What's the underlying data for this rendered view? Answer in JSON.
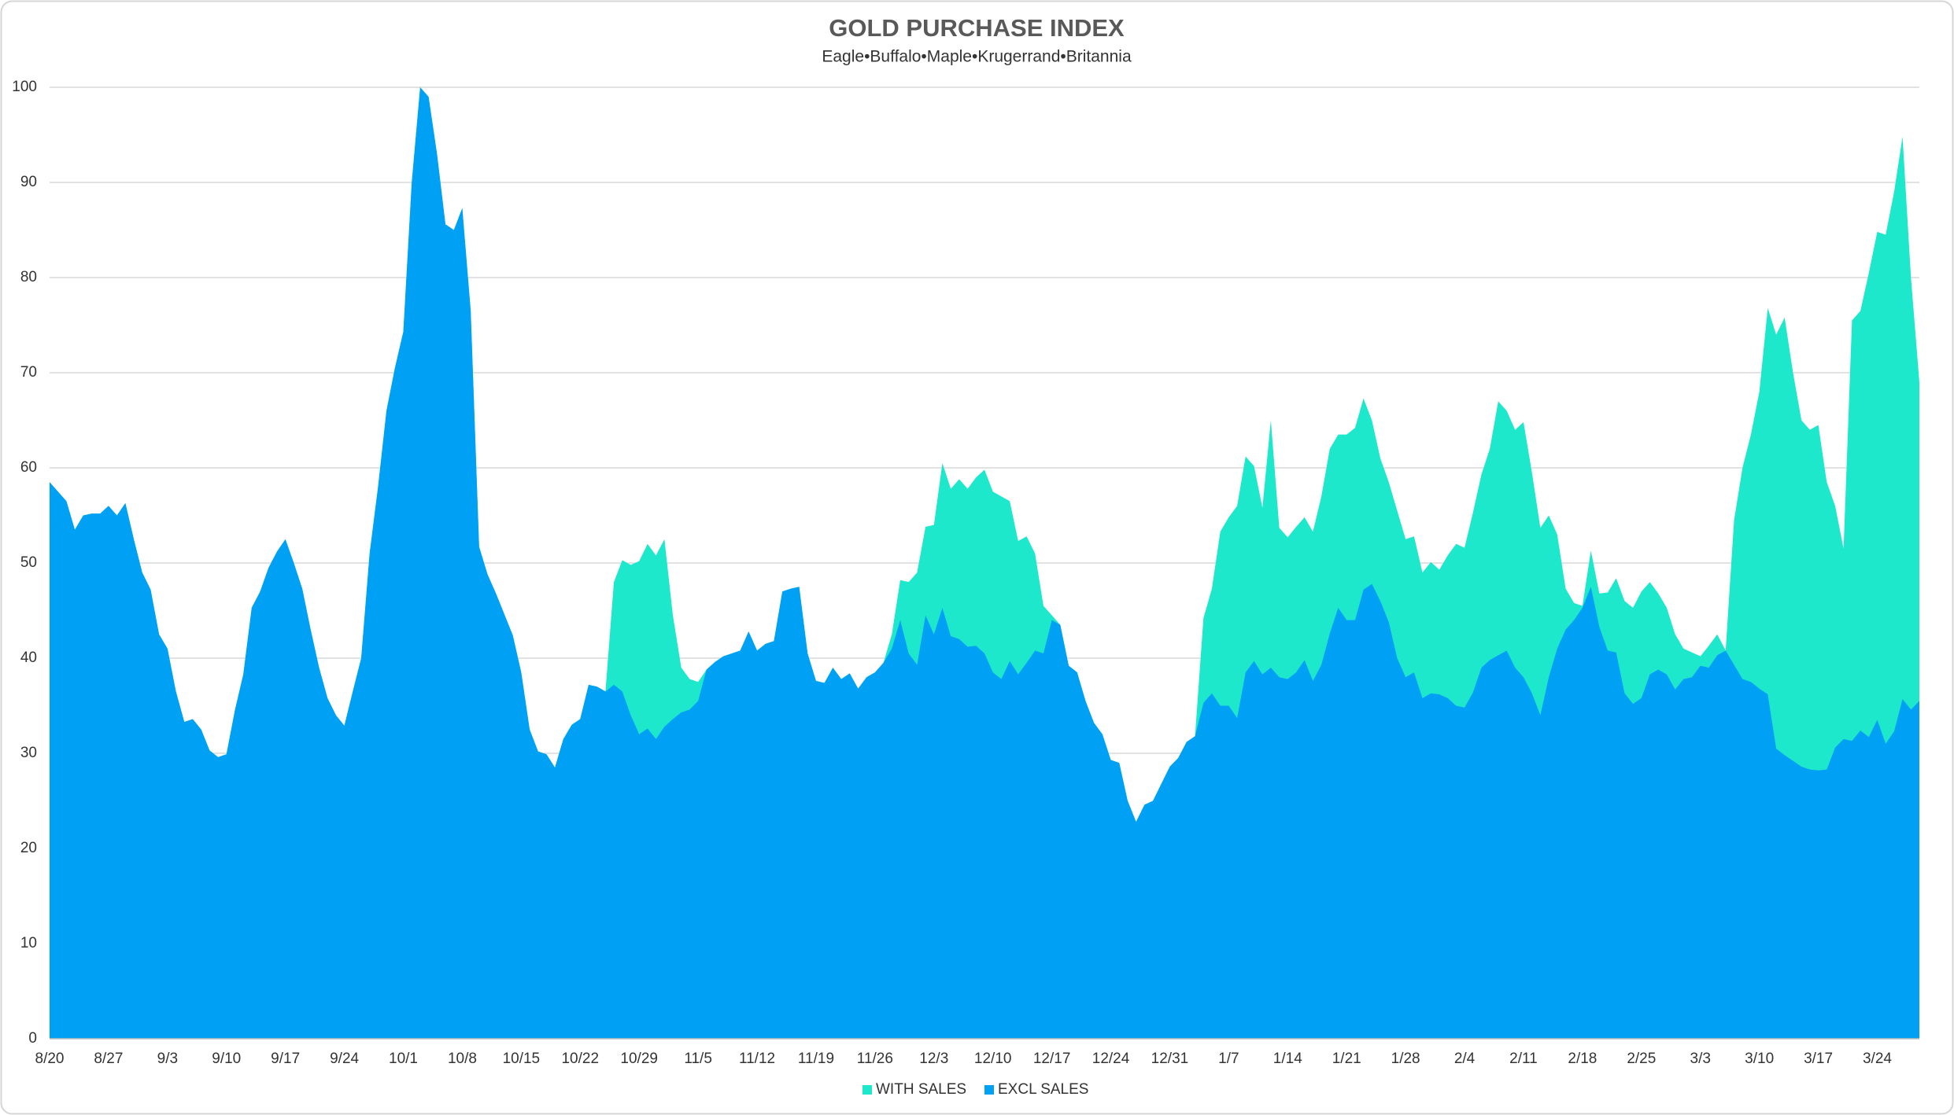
{
  "chart_data": {
    "type": "area",
    "title": "GOLD PURCHASE  INDEX",
    "subtitle": "Eagle•Buffalo•Maple•Krugerrand•Britannia",
    "categories": [
      "8/20",
      null,
      null,
      null,
      null,
      null,
      null,
      "8/27",
      null,
      null,
      null,
      null,
      null,
      null,
      "9/3",
      null,
      null,
      null,
      null,
      null,
      null,
      "9/10",
      null,
      null,
      null,
      null,
      null,
      null,
      "9/17",
      null,
      null,
      null,
      null,
      null,
      null,
      "9/24",
      null,
      null,
      null,
      null,
      null,
      null,
      "10/1",
      null,
      null,
      null,
      null,
      null,
      null,
      "10/8",
      null,
      null,
      null,
      null,
      null,
      null,
      "10/15",
      null,
      null,
      null,
      null,
      null,
      null,
      "10/22",
      null,
      null,
      null,
      null,
      null,
      null,
      "10/29",
      null,
      null,
      null,
      null,
      null,
      null,
      "11/5",
      null,
      null,
      null,
      null,
      null,
      null,
      "11/12",
      null,
      null,
      null,
      null,
      null,
      null,
      "11/19",
      null,
      null,
      null,
      null,
      null,
      null,
      "11/26",
      null,
      null,
      null,
      null,
      null,
      null,
      "12/3",
      null,
      null,
      null,
      null,
      null,
      null,
      "12/10",
      null,
      null,
      null,
      null,
      null,
      null,
      "12/17",
      null,
      null,
      null,
      null,
      null,
      null,
      "12/24",
      null,
      null,
      null,
      null,
      null,
      null,
      "12/31",
      null,
      null,
      null,
      null,
      null,
      null,
      "1/7",
      null,
      null,
      null,
      null,
      null,
      null,
      "1/14",
      null,
      null,
      null,
      null,
      null,
      null,
      "1/21",
      null,
      null,
      null,
      null,
      null,
      null,
      "1/28",
      null,
      null,
      null,
      null,
      null,
      null,
      "2/4",
      null,
      null,
      null,
      null,
      null,
      null,
      "2/11",
      null,
      null,
      null,
      null,
      null,
      null,
      "2/18",
      null,
      null,
      null,
      null,
      null,
      null,
      "2/25",
      null,
      null,
      null,
      null,
      null,
      null,
      "3/3",
      null,
      null,
      null,
      null,
      null,
      null,
      "3/10",
      null,
      null,
      null,
      null,
      null,
      null,
      "3/17",
      null,
      null,
      null,
      null,
      null,
      null,
      "3/24",
      null,
      null,
      null,
      null,
      null
    ],
    "series": [
      {
        "name": "WITH SALES",
        "color": "#1de8cc",
        "values": [
          58.5,
          57.5,
          56.5,
          53.5,
          55,
          55.2,
          55.2,
          56,
          55,
          56.3,
          52.5,
          49,
          47.2,
          42.5,
          41,
          36.5,
          33.3,
          33.6,
          32.5,
          30.3,
          29.6,
          29.9,
          34.5,
          38.3,
          45.3,
          47,
          49.5,
          51.2,
          52.5,
          50,
          47.3,
          43,
          39,
          35.8,
          34,
          32.9,
          36.5,
          40,
          51,
          58,
          66,
          70.5,
          74.3,
          90,
          100,
          99,
          93,
          85.6,
          85,
          87.3,
          76.5,
          51.7,
          48.8,
          46.8,
          44.6,
          42.4,
          38.5,
          32.5,
          30.2,
          29.9,
          28.5,
          31.5,
          33,
          33.6,
          37.2,
          37,
          36.5,
          48,
          50.3,
          49.8,
          50.2,
          52,
          50.8,
          52.5,
          44.5,
          39,
          37.8,
          37.5,
          38.8,
          39.6,
          40.2,
          40.5,
          40.8,
          42.8,
          40.8,
          41.5,
          41.8,
          47,
          47.3,
          47.5,
          40.5,
          37.6,
          37.4,
          39,
          37.8,
          38.4,
          36.8,
          38,
          38.5,
          39.5,
          42.5,
          48.2,
          48,
          49,
          53.8,
          54,
          60.5,
          57.8,
          58.8,
          57.8,
          59,
          59.8,
          57.5,
          57,
          56.5,
          52.3,
          52.8,
          51,
          45.5,
          44.5,
          43.5,
          39.2,
          38.5,
          35.5,
          33.2,
          32,
          29.3,
          29,
          25,
          22.8,
          24.6,
          25,
          26.8,
          28.6,
          29.5,
          31.2,
          31.8,
          44.2,
          47.3,
          53.3,
          54.8,
          56,
          61.2,
          60.2,
          55.8,
          65,
          53.7,
          52.7,
          53.8,
          54.8,
          53.3,
          57,
          62,
          63.5,
          63.5,
          64.2,
          67.3,
          65,
          61,
          58.5,
          55.5,
          52.5,
          52.8,
          49,
          50.1,
          49.3,
          50.8,
          52,
          51.6,
          55.3,
          59.3,
          62,
          67,
          66,
          64,
          64.8,
          59.5,
          53.7,
          55,
          53,
          47.3,
          45.8,
          45.5,
          51.3,
          46.8,
          46.9,
          48.4,
          46,
          45.3,
          47,
          48,
          46.8,
          45.3,
          42.5,
          41,
          40.6,
          40.2,
          41.3,
          42.5,
          40.8,
          54.5,
          60,
          63.5,
          68,
          76.8,
          74,
          75.8,
          70,
          65,
          64,
          64.5,
          58.5,
          56,
          51.5,
          75.5,
          76.5,
          80.5,
          84.8,
          84.5,
          89,
          94.8,
          80,
          69
        ]
      },
      {
        "name": "EXCL SALES",
        "color": "#00a0f5",
        "values": [
          58.5,
          57.5,
          56.5,
          53.5,
          55,
          55.2,
          55.2,
          56,
          55,
          56.3,
          52.5,
          49,
          47.2,
          42.5,
          41,
          36.5,
          33.3,
          33.6,
          32.5,
          30.3,
          29.6,
          29.9,
          34.5,
          38.3,
          45.3,
          47,
          49.5,
          51.2,
          52.5,
          50,
          47.3,
          43,
          39,
          35.8,
          34,
          32.9,
          36.5,
          40,
          51,
          58,
          66,
          70.5,
          74.3,
          90,
          100,
          99,
          93,
          85.6,
          85,
          87.3,
          76.5,
          51.7,
          48.8,
          46.8,
          44.6,
          42.4,
          38.5,
          32.5,
          30.2,
          29.9,
          28.5,
          31.5,
          33,
          33.6,
          37.2,
          37,
          36.5,
          37.2,
          36.5,
          34,
          32,
          32.6,
          31.5,
          32.8,
          33.6,
          34.3,
          34.6,
          35.5,
          38.8,
          39.6,
          40.2,
          40.5,
          40.8,
          42.8,
          40.8,
          41.5,
          41.8,
          47,
          47.3,
          47.5,
          40.5,
          37.6,
          37.4,
          39,
          37.8,
          38.4,
          36.8,
          38,
          38.5,
          39.5,
          41,
          44,
          40.5,
          39.3,
          44.5,
          42.5,
          45.3,
          42.3,
          42,
          41.2,
          41.3,
          40.5,
          38.5,
          37.8,
          39.7,
          38.3,
          39.5,
          40.8,
          40.5,
          44,
          43.5,
          39.2,
          38.5,
          35.5,
          33.2,
          32,
          29.3,
          29,
          25,
          22.8,
          24.6,
          25,
          26.8,
          28.6,
          29.5,
          31.2,
          31.8,
          35.3,
          36.3,
          35,
          35,
          33.7,
          38.5,
          39.7,
          38.3,
          39,
          38,
          37.8,
          38.5,
          39.8,
          37.6,
          39.3,
          42.6,
          45.3,
          44,
          44,
          47.2,
          47.8,
          46,
          43.8,
          40,
          38,
          38.5,
          35.8,
          36.3,
          36.2,
          35.8,
          35,
          34.8,
          36.4,
          39,
          39.8,
          40.3,
          40.8,
          39,
          38,
          36.3,
          34,
          38,
          41,
          43,
          44,
          45.3,
          47.5,
          43.3,
          40.8,
          40.6,
          36.3,
          35.2,
          35.8,
          38.3,
          38.8,
          38.3,
          36.7,
          37.8,
          38,
          39.2,
          39,
          40.3,
          40.8,
          39.3,
          37.8,
          37.5,
          36.8,
          36.2,
          30.5,
          29.8,
          29.2,
          28.6,
          28.3,
          28.2,
          28.3,
          30.6,
          31.5,
          31.3,
          32.4,
          31.7,
          33.5,
          31,
          32.3,
          35.7,
          34.6,
          35.5
        ]
      }
    ],
    "ylim": [
      0,
      100
    ],
    "yticks": [
      0,
      10,
      20,
      30,
      40,
      50,
      60,
      70,
      80,
      90,
      100
    ],
    "grid": true,
    "legend": "bottom"
  }
}
